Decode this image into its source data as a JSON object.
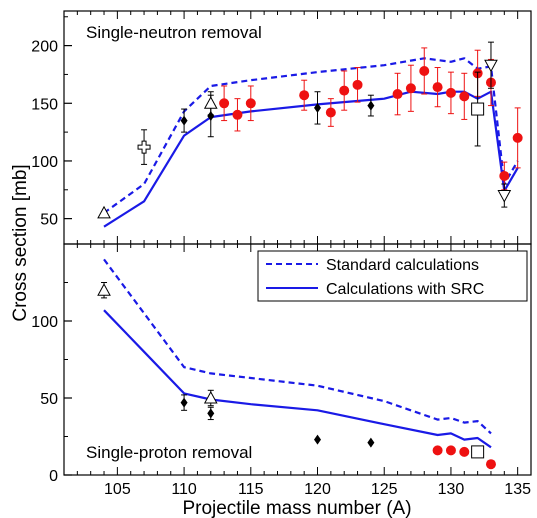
{
  "chart_data": {
    "type": "scatter",
    "xlabel": "Projectile mass number (A)",
    "ylabel": "Cross section [mb]",
    "xlim": [
      101,
      136
    ],
    "x_ticks": [
      105,
      110,
      115,
      120,
      125,
      130,
      135
    ],
    "legend": {
      "placement": "top-right of lower panel",
      "entries": [
        {
          "label": "Standard calculations",
          "style": "dashed",
          "color": "#1a1ae6"
        },
        {
          "label": "Calculations with SRC",
          "style": "solid",
          "color": "#1a1ae6"
        }
      ]
    },
    "panels": [
      {
        "id": "top",
        "label": "Single-neutron removal",
        "ylim": [
          28,
          230
        ],
        "y_ticks": [
          50,
          100,
          150,
          200
        ],
        "lines": {
          "standard": {
            "x": [
              104,
              107,
              110,
              112,
              115,
              120,
              125,
              128,
              130,
              131,
              132,
              133,
              134,
              135
            ],
            "y": [
              55,
              80,
              143,
              165,
              170,
              177,
              183,
              189,
              186,
              189,
              180,
              182,
              80,
              100
            ]
          },
          "src": {
            "x": [
              104,
              107,
              110,
              112,
              115,
              120,
              125,
              127,
              129,
              130,
              131,
              132,
              133,
              134,
              135
            ],
            "y": [
              43,
              65,
              122,
              138,
              143,
              149,
              154,
              160,
              158,
              160,
              160,
              154,
              160,
              74,
              94
            ]
          }
        },
        "points": [
          {
            "set": "diamond",
            "x": [
              110,
              112,
              120,
              124
            ],
            "y": [
              135,
              139,
              146,
              148
            ],
            "err": [
              10,
              18,
              14,
              9
            ]
          },
          {
            "set": "red_circle",
            "x": [
              113,
              114,
              115,
              119,
              121,
              122,
              123,
              126,
              127,
              128,
              129,
              130,
              131,
              132,
              133,
              134,
              135
            ],
            "y": [
              150,
              140,
              150,
              157,
              142,
              161,
              166,
              158,
              163,
              178,
              164,
              159,
              156,
              176,
              168,
              87,
              120
            ],
            "err": [
              15,
              14,
              15,
              13,
              12,
              17,
              15,
              18,
              20,
              20,
              17,
              18,
              20,
              20,
              20,
              12,
              26
            ]
          },
          {
            "set": "open_triangle_up",
            "x": [
              104,
              112
            ],
            "y": [
              55,
              150
            ],
            "err": [
              0,
              10
            ]
          },
          {
            "set": "open_triangle_down",
            "x": [
              133,
              134
            ],
            "y": [
              183,
              70
            ],
            "err": [
              20,
              10
            ]
          },
          {
            "set": "open_cross",
            "x": [
              107
            ],
            "y": [
              112
            ],
            "err": [
              15
            ]
          },
          {
            "set": "open_square",
            "x": [
              132
            ],
            "y": [
              145
            ],
            "err": [
              32
            ]
          }
        ]
      },
      {
        "id": "bottom",
        "label": "Single-proton removal",
        "ylim": [
          0,
          150
        ],
        "y_ticks": [
          0,
          50,
          100
        ],
        "lines": {
          "standard": {
            "x": [
              104,
              107,
              110,
              112,
              115,
              120,
              125,
              129,
              130,
              131,
              132,
              133
            ],
            "y": [
              140,
              105,
              70,
              66,
              63,
              58,
              48,
              36,
              37,
              34,
              35,
              27
            ]
          },
          "src": {
            "x": [
              104,
              107,
              110,
              112,
              115,
              120,
              125,
              129,
              130,
              131,
              132,
              133
            ],
            "y": [
              107,
              80,
              53,
              49,
              46,
              42,
              33,
              26,
              27,
              23,
              24,
              18
            ]
          }
        },
        "points": [
          {
            "set": "diamond",
            "x": [
              110,
              112,
              120,
              124
            ],
            "y": [
              47,
              40,
              23,
              21
            ],
            "err": [
              5,
              4,
              0,
              0
            ]
          },
          {
            "set": "red_circle",
            "x": [
              129,
              130,
              131,
              132,
              133
            ],
            "y": [
              16,
              16,
              15,
              15,
              7
            ],
            "err": [
              0,
              0,
              0,
              0,
              0
            ]
          },
          {
            "set": "open_triangle_up",
            "x": [
              104,
              112
            ],
            "y": [
              120,
              50
            ],
            "err": [
              5,
              5
            ]
          },
          {
            "set": "open_square",
            "x": [
              132
            ],
            "y": [
              15
            ],
            "err": [
              0
            ]
          }
        ]
      }
    ]
  }
}
